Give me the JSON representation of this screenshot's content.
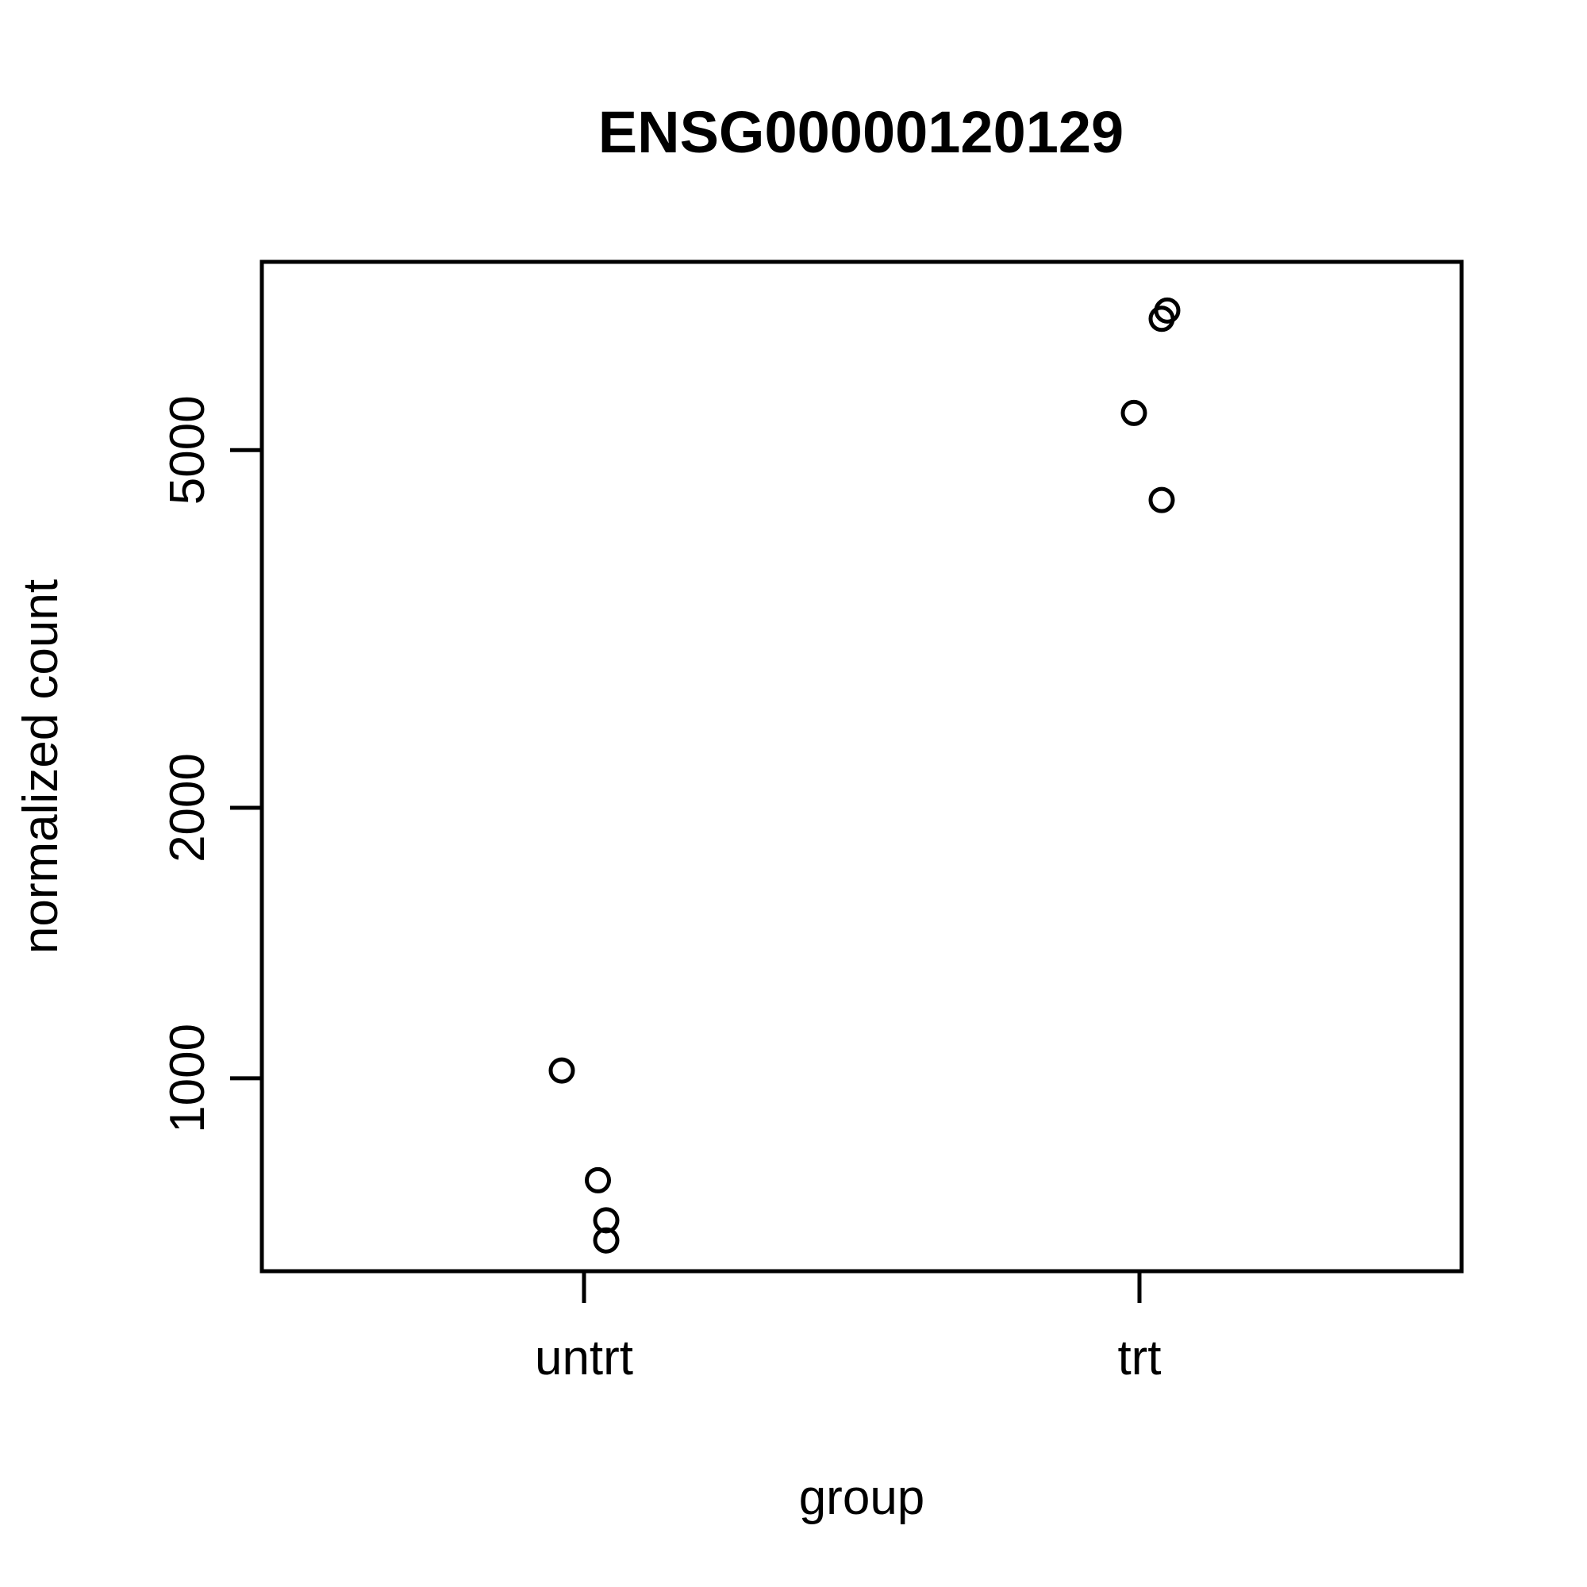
{
  "chart_data": {
    "type": "scatter",
    "title": "ENSG00000120129",
    "xlabel": "group",
    "ylabel": "normalized count",
    "categories": [
      "untrt",
      "trt"
    ],
    "yscale": "log",
    "yticks": [
      1000,
      2000,
      5000
    ],
    "ylim": [
      610,
      8100
    ],
    "jitter": [
      -0.04,
      0.025,
      0.04,
      0.04,
      -0.01,
      0.04,
      0.04,
      0.05
    ],
    "points": [
      {
        "group": "untrt",
        "y": 1020
      },
      {
        "group": "untrt",
        "y": 770
      },
      {
        "group": "untrt",
        "y": 695
      },
      {
        "group": "untrt",
        "y": 660
      },
      {
        "group": "trt",
        "y": 5500
      },
      {
        "group": "trt",
        "y": 4400
      },
      {
        "group": "trt",
        "y": 7000
      },
      {
        "group": "trt",
        "y": 7150
      }
    ],
    "grid": false,
    "legend": "none"
  }
}
